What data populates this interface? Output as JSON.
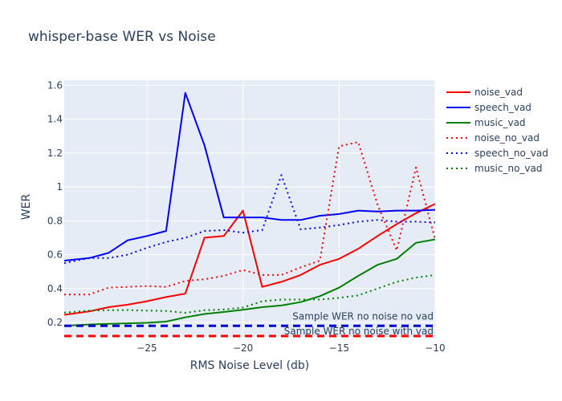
{
  "chart_data": {
    "type": "line",
    "title": "whisper-base WER vs Noise",
    "xlabel": "RMS Noise Level (db)",
    "ylabel": "WER",
    "xlim": [
      -29.3,
      -10
    ],
    "ylim": [
      0.115,
      1.63
    ],
    "x_ticks": [
      -25,
      -20,
      -15,
      -10
    ],
    "y_ticks": [
      0.2,
      0.4,
      0.6,
      0.8,
      1,
      1.2,
      1.4,
      1.6
    ],
    "x_tick_labels": [
      "−25",
      "−20",
      "−15",
      "−10"
    ],
    "y_tick_labels": [
      "0.2",
      "0.4",
      "0.6",
      "0.8",
      "1",
      "1.2",
      "1.4",
      "1.6"
    ],
    "grid": true,
    "legend_position": "top-right",
    "x": [
      -29.3,
      -28,
      -27,
      -26,
      -25,
      -24,
      -23,
      -22,
      -21,
      -20,
      -19,
      -18,
      -17,
      -16,
      -15,
      -14,
      -13,
      -12,
      -11,
      -10
    ],
    "series": [
      {
        "name": "noise_vad",
        "color": "#ff0000",
        "dash": "solid",
        "values": [
          0.245,
          0.265,
          0.29,
          0.305,
          0.325,
          0.35,
          0.37,
          0.7,
          0.71,
          0.86,
          0.41,
          0.44,
          0.48,
          0.54,
          0.575,
          0.635,
          0.71,
          0.78,
          0.845,
          0.9
        ]
      },
      {
        "name": "speech_vad",
        "color": "#0000ff",
        "dash": "solid",
        "values": [
          0.565,
          0.58,
          0.61,
          0.685,
          0.71,
          0.74,
          1.555,
          1.245,
          0.82,
          0.82,
          0.82,
          0.805,
          0.805,
          0.83,
          0.84,
          0.86,
          0.855,
          0.86,
          0.86,
          0.865
        ]
      },
      {
        "name": "music_vad",
        "color": "#008000",
        "dash": "solid",
        "values": [
          0.18,
          0.188,
          0.192,
          0.195,
          0.198,
          0.205,
          0.23,
          0.25,
          0.262,
          0.275,
          0.29,
          0.3,
          0.32,
          0.355,
          0.405,
          0.475,
          0.54,
          0.575,
          0.67,
          0.69
        ]
      },
      {
        "name": "noise_no_vad",
        "color": "#ff0000",
        "dash": "dot",
        "values": [
          0.365,
          0.365,
          0.405,
          0.41,
          0.415,
          0.41,
          0.445,
          0.455,
          0.475,
          0.51,
          0.48,
          0.48,
          0.525,
          0.565,
          1.24,
          1.265,
          0.895,
          0.625,
          1.115,
          0.69
        ]
      },
      {
        "name": "speech_no_vad",
        "color": "#0000ff",
        "dash": "dot",
        "values": [
          0.55,
          0.58,
          0.58,
          0.6,
          0.64,
          0.675,
          0.7,
          0.74,
          0.745,
          0.73,
          0.745,
          1.07,
          0.75,
          0.76,
          0.775,
          0.795,
          0.805,
          0.795,
          0.795,
          0.79
        ]
      },
      {
        "name": "music_no_vad",
        "color": "#008000",
        "dash": "dot",
        "values": [
          0.258,
          0.27,
          0.272,
          0.273,
          0.27,
          0.268,
          0.257,
          0.272,
          0.276,
          0.288,
          0.325,
          0.335,
          0.335,
          0.335,
          0.345,
          0.36,
          0.4,
          0.44,
          0.465,
          0.48
        ]
      }
    ],
    "reference_lines": [
      {
        "label": "Sample WER no noise no vad",
        "value": 0.18,
        "color": "#0000cd",
        "dash": "dash"
      },
      {
        "label": "Sample WER no noise with vad",
        "value": 0.12,
        "color": "#ff0000",
        "dash": "dash"
      }
    ]
  }
}
